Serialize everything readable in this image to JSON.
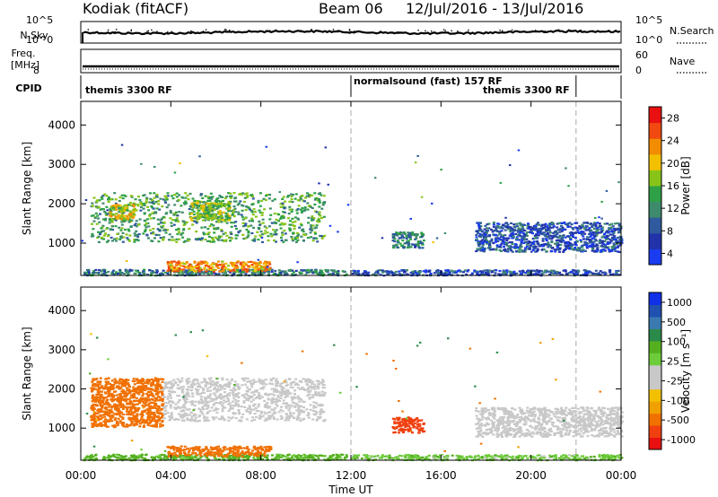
{
  "header": {
    "station": "Kodiak  (fitACF)",
    "beam": "Beam 06",
    "date_range": "12/Jul/2016 - 13/Jul/2016"
  },
  "strips": {
    "nsky_label": "N.Sky",
    "nsky_ticks": [
      "10^5",
      "10^0"
    ],
    "nsearch_label": "N.Search",
    "nsearch_ticks": [
      "10^5",
      "10^0"
    ],
    "freq_label_1": "Freq.",
    "freq_label_2": "[MHz]",
    "freq_ticks": [
      "8"
    ],
    "nave_label": "Nave",
    "nave_ticks": [
      "60",
      "0"
    ],
    "cpid_label": "CPID",
    "cpid_segments": [
      "themis 3300 RF",
      "normalsound (fast) 157 RF",
      "themis 3300 RF"
    ]
  },
  "colors": {
    "power": [
      "#1a3cf0",
      "#2233aa",
      "#2f5a9e",
      "#3e8a6c",
      "#2ea046",
      "#88c418",
      "#f2c000",
      "#f28c00",
      "#f04a10",
      "#e81010"
    ],
    "velocity": [
      "#1030e8",
      "#2050b0",
      "#3a7ab0",
      "#2a8a4a",
      "#55b020",
      "#6ccc3a",
      "#c8c8c8",
      "#c8c8c8",
      "#f2c000",
      "#f0a000",
      "#f07000",
      "#f04010",
      "#e81010"
    ]
  },
  "chart_data": [
    {
      "type": "heatmap",
      "title": "Power",
      "ylabel": "Slant Range [km]",
      "yticks": [
        "4000",
        "3000",
        "2000",
        "1000"
      ],
      "ylim": [
        180,
        4600
      ],
      "xlim": [
        0,
        24
      ],
      "xticks": [
        "00:00",
        "04:00",
        "08:00",
        "12:00",
        "16:00",
        "20:00",
        "00:00"
      ],
      "colorbar_label": "Power [dB]",
      "colorbar_ticks": [
        "28",
        "24",
        "20",
        "16",
        "12",
        "8",
        "4"
      ],
      "colorbar_range": [
        0,
        30
      ],
      "echo_regions": [
        {
          "t0": 0.1,
          "t1": 11.8,
          "r0": 200,
          "r1": 350,
          "value": 10
        },
        {
          "t0": 3.8,
          "t1": 8.4,
          "r0": 300,
          "r1": 560,
          "value": 22
        },
        {
          "t0": 0.4,
          "t1": 10.8,
          "r0": 1050,
          "r1": 2300,
          "value": 13
        },
        {
          "t0": 1.2,
          "t1": 2.4,
          "r0": 1600,
          "r1": 2000,
          "value": 19
        },
        {
          "t0": 4.8,
          "t1": 6.6,
          "r0": 1600,
          "r1": 2100,
          "value": 16
        },
        {
          "t0": 13.8,
          "t1": 15.2,
          "r0": 900,
          "r1": 1300,
          "value": 10
        },
        {
          "t0": 17.5,
          "t1": 24.0,
          "r0": 800,
          "r1": 1550,
          "value": 6
        },
        {
          "t0": 12.0,
          "t1": 24.0,
          "r0": 200,
          "r1": 340,
          "value": 6
        }
      ]
    },
    {
      "type": "heatmap",
      "title": "Velocity",
      "ylabel": "Slant Range [km]",
      "yticks": [
        "4000",
        "3000",
        "2000",
        "1000"
      ],
      "ylim": [
        180,
        4600
      ],
      "xlim": [
        0,
        24
      ],
      "xticks": [
        "00:00",
        "04:00",
        "08:00",
        "12:00",
        "16:00",
        "20:00",
        "00:00"
      ],
      "xlabel": "Time UT",
      "colorbar_label": "Velocity [m s⁻¹]",
      "colorbar_ticks": [
        "1000",
        "500",
        "100",
        "25",
        "-25",
        "-100",
        "-500",
        "-1000"
      ],
      "colorbar_range": [
        -1000,
        1000
      ],
      "echo_regions": [
        {
          "t0": 0.1,
          "t1": 11.8,
          "r0": 200,
          "r1": 350,
          "value": 60
        },
        {
          "t0": 3.8,
          "t1": 8.4,
          "r0": 300,
          "r1": 560,
          "value": -150
        },
        {
          "t0": 0.4,
          "t1": 3.6,
          "r0": 1050,
          "r1": 2300,
          "value": -200
        },
        {
          "t0": 3.6,
          "t1": 10.8,
          "r0": 1200,
          "r1": 2300,
          "value": 0
        },
        {
          "t0": 13.8,
          "t1": 15.2,
          "r0": 900,
          "r1": 1300,
          "value": -300
        },
        {
          "t0": 17.5,
          "t1": 24.0,
          "r0": 800,
          "r1": 1550,
          "value": 0
        },
        {
          "t0": 12.0,
          "t1": 24.0,
          "r0": 200,
          "r1": 340,
          "value": 40
        }
      ]
    }
  ]
}
